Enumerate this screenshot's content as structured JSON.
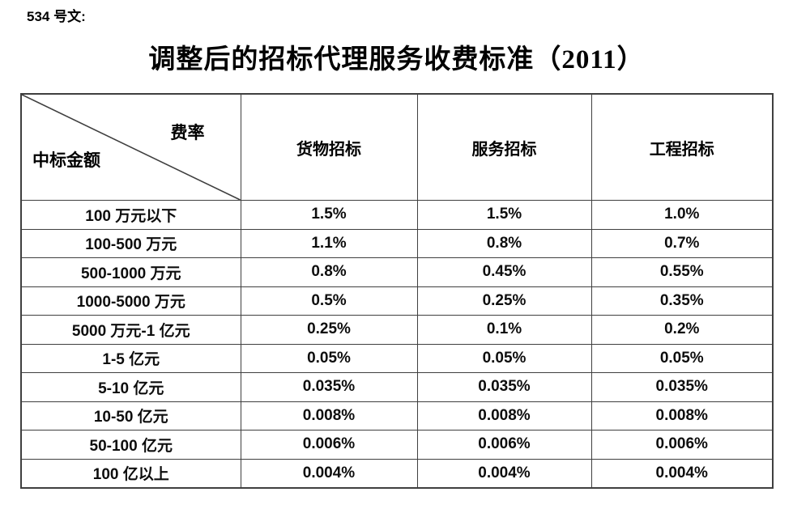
{
  "page": {
    "doc_label": "534 号文:",
    "title": "调整后的招标代理服务收费标准（2011）"
  },
  "table": {
    "corner": {
      "top_right": "费率",
      "bottom_left": "中标金额"
    },
    "columns": [
      "货物招标",
      "服务招标",
      "工程招标"
    ],
    "rows": [
      {
        "label": "100 万元以下",
        "values": [
          "1.5%",
          "1.5%",
          "1.0%"
        ]
      },
      {
        "label": "100-500 万元",
        "values": [
          "1.1%",
          "0.8%",
          "0.7%"
        ]
      },
      {
        "label": "500-1000 万元",
        "values": [
          "0.8%",
          "0.45%",
          "0.55%"
        ]
      },
      {
        "label": "1000-5000 万元",
        "values": [
          "0.5%",
          "0.25%",
          "0.35%"
        ]
      },
      {
        "label": "5000 万元-1 亿元",
        "values": [
          "0.25%",
          "0.1%",
          "0.2%"
        ]
      },
      {
        "label": "1-5 亿元",
        "values": [
          "0.05%",
          "0.05%",
          "0.05%"
        ]
      },
      {
        "label": "5-10 亿元",
        "values": [
          "0.035%",
          "0.035%",
          "0.035%"
        ]
      },
      {
        "label": "10-50 亿元",
        "values": [
          "0.008%",
          "0.008%",
          "0.008%"
        ]
      },
      {
        "label": "50-100 亿元",
        "values": [
          "0.006%",
          "0.006%",
          "0.006%"
        ]
      },
      {
        "label": "100 亿以上",
        "values": [
          "0.004%",
          "0.004%",
          "0.004%"
        ]
      }
    ]
  },
  "colors": {
    "border": "#3f3f3f",
    "text": "#000000",
    "background": "#ffffff"
  }
}
